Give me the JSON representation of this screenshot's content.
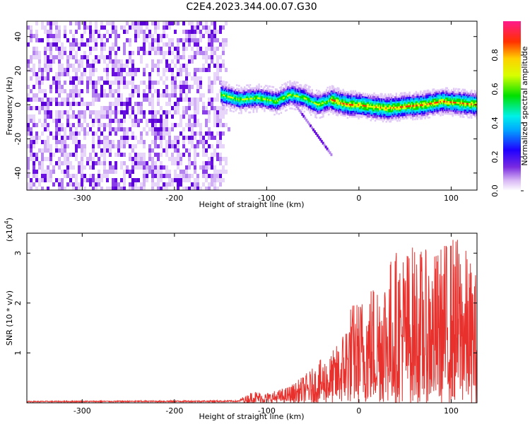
{
  "title": "C2E4.2023.344.00.07.G30",
  "chart_data": [
    {
      "type": "heatmap",
      "xlabel": "Height of straight line (km)",
      "ylabel": "Frequency (Hz)",
      "xlim": [
        -360,
        128
      ],
      "ylim": [
        -50,
        49
      ],
      "xticks": [
        "-300",
        "-200",
        "-100",
        "0",
        "100"
      ],
      "xtick_values": [
        -300,
        -200,
        -100,
        0,
        100
      ],
      "yticks": [
        "40",
        "20",
        "0",
        "-20",
        "-40"
      ],
      "ytick_values": [
        40,
        20,
        0,
        -20,
        -40
      ],
      "colorbar": {
        "label": "Normalized spectral amplitude",
        "range": [
          0,
          1
        ],
        "ticks": [
          "0.0",
          "0.2",
          "0.4",
          "0.6",
          "0.8"
        ],
        "tick_values": [
          0.0,
          0.2,
          0.4,
          0.6,
          0.8
        ]
      },
      "noise_region_x": [
        -360,
        -150
      ],
      "signal_trace": {
        "x": [
          -150,
          -130,
          -110,
          -90,
          -75,
          -60,
          -45,
          -30,
          -20,
          -10,
          0,
          10,
          30,
          50,
          70,
          90,
          110,
          128
        ],
        "y": [
          6,
          3,
          4,
          2,
          6,
          4,
          0,
          3,
          1,
          0,
          0,
          -1,
          -2,
          -1,
          0,
          2,
          1,
          0
        ]
      }
    },
    {
      "type": "line",
      "xlabel": "Height of straight line (km)",
      "ylabel": "SNR (10 * v/v)",
      "yscale_label": "(x10",
      "yscale_exp": "4",
      "yscale_close": ")",
      "xlim": [
        -360,
        128
      ],
      "ylim": [
        0,
        3.4
      ],
      "xticks": [
        "-300",
        "-200",
        "-100",
        "0",
        "100"
      ],
      "xtick_values": [
        -300,
        -200,
        -100,
        0,
        100
      ],
      "yticks": [
        "3",
        "2",
        "1"
      ],
      "ytick_values": [
        3,
        2,
        1
      ],
      "series": [
        {
          "color": "#e8302c",
          "envelope_x": [
            -360,
            -130,
            -115,
            -100,
            -90,
            -80,
            -70,
            -60,
            -50,
            -40,
            -30,
            -20,
            -10,
            0,
            20,
            40,
            60,
            80,
            100,
            110,
            128
          ],
          "envelope_y": [
            0.03,
            0.04,
            0.25,
            0.2,
            0.25,
            0.3,
            0.4,
            0.55,
            0.7,
            0.9,
            1.0,
            1.3,
            2.0,
            2.1,
            2.6,
            3.1,
            3.2,
            3.0,
            3.4,
            3.35,
            2.6
          ]
        }
      ]
    }
  ]
}
